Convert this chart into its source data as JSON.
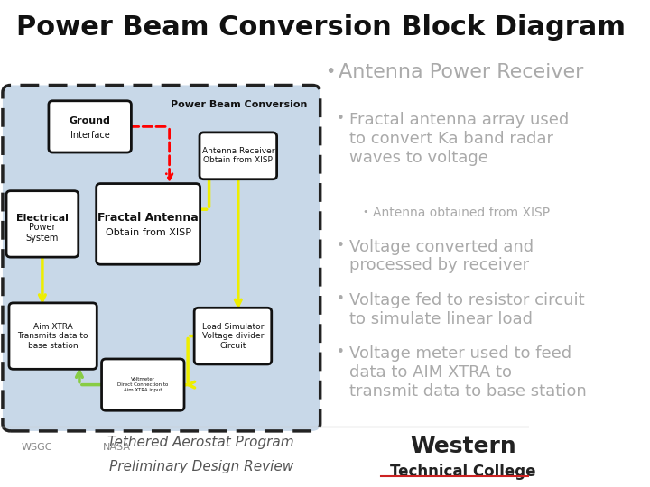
{
  "title": "Power Beam Conversion Block Diagram",
  "title_fontsize": 22,
  "diagram_bg": "#c8d8e8",
  "bullet_color": "#aaaaaa",
  "bullet1": "Antenna Power Receiver",
  "bullet1_size": 16,
  "bullet2": "Fractal antenna array used\nto convert Ka band radar\nwaves to voltage",
  "bullet2_size": 13,
  "bullet3": "Antenna obtained from XISP",
  "bullet3_size": 10,
  "bullet4": "Voltage converted and\nprocessed by receiver",
  "bullet4_size": 13,
  "bullet5": "Voltage fed to resistor circuit\nto simulate linear load",
  "bullet5_size": 13,
  "bullet6": "Voltage meter used to feed\ndata to AIM XTRA to\ntransmit data to base station",
  "bullet6_size": 13,
  "pbc_label": "Power Beam Conversion",
  "footer_text1": "Tethered Aerostat Program",
  "footer_text2": "Preliminary Design Review",
  "footer_color": "#555555",
  "footer_fontsize": 11
}
